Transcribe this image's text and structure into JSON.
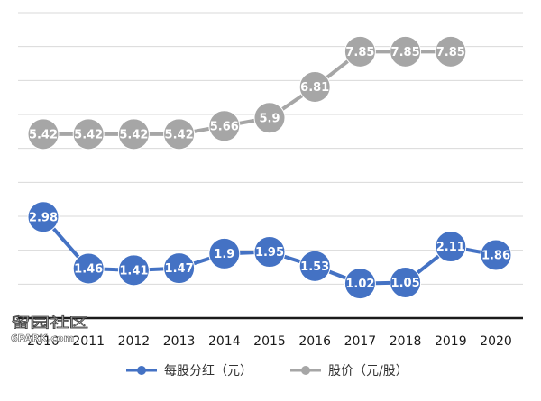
{
  "chart_data": {
    "type": "line",
    "x": [
      "2010",
      "2011",
      "2012",
      "2013",
      "2014",
      "2015",
      "2016",
      "2017",
      "2018",
      "2019",
      "2020"
    ],
    "series": [
      {
        "name": "每股分红（元）",
        "color": "#4472c4",
        "values": [
          2.98,
          1.46,
          1.41,
          1.47,
          1.9,
          1.95,
          1.53,
          1.02,
          1.05,
          2.11,
          1.86
        ],
        "labels": [
          "2.98",
          "1.46",
          "1.41",
          "1.47",
          "1.9",
          "1.95",
          "1.53",
          "1.02",
          "1.05",
          "2.11",
          "1.86"
        ]
      },
      {
        "name": "股价（元/股）",
        "color": "#a6a6a6",
        "values": [
          5.42,
          5.42,
          5.42,
          5.42,
          5.66,
          5.9,
          6.81,
          7.85,
          7.85,
          7.85,
          null
        ],
        "labels": [
          "5.42",
          "5.42",
          "5.42",
          "5.42",
          "5.66",
          "5.9",
          "6.81",
          "7.85",
          "7.85",
          "7.85",
          ""
        ]
      }
    ],
    "ylim": [
      0,
      9
    ],
    "grid": true,
    "legend_position": "bottom",
    "y_ticks_shown": false
  },
  "watermark": {
    "cn_text": "留园社区",
    "en_text": "6PARK.com"
  }
}
